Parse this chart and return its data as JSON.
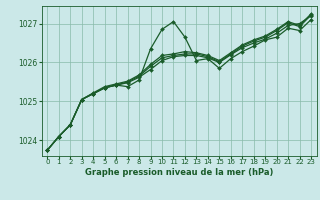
{
  "background_color": "#cbe8e8",
  "plot_bg_color": "#cbe8e8",
  "grid_color": "#88bbaa",
  "line_color": "#1a5c2a",
  "xlabel": "Graphe pression niveau de la mer (hPa)",
  "xlim": [
    -0.5,
    23.5
  ],
  "ylim": [
    1023.6,
    1027.45
  ],
  "yticks": [
    1024,
    1025,
    1026,
    1027
  ],
  "xticks": [
    0,
    1,
    2,
    3,
    4,
    5,
    6,
    7,
    8,
    9,
    10,
    11,
    12,
    13,
    14,
    15,
    16,
    17,
    18,
    19,
    20,
    21,
    22,
    23
  ],
  "series": [
    {
      "x": [
        0,
        1,
        2,
        3,
        4,
        5,
        6,
        7,
        8,
        9,
        10,
        11,
        12,
        13,
        14,
        15,
        16,
        17,
        18,
        19,
        20,
        21,
        22,
        23
      ],
      "y": [
        1023.75,
        1024.1,
        1024.4,
        1025.05,
        1025.2,
        1025.35,
        1025.42,
        1025.38,
        1025.55,
        1026.35,
        1026.85,
        1027.05,
        1026.65,
        1026.05,
        1026.1,
        1025.85,
        1026.1,
        1026.28,
        1026.42,
        1026.58,
        1026.65,
        1026.88,
        1026.82,
        1027.1
      ]
    },
    {
      "x": [
        0,
        1,
        2,
        3,
        4,
        5,
        6,
        7,
        8,
        9,
        10,
        11,
        12,
        13,
        14,
        15,
        16,
        17,
        18,
        19,
        20,
        21,
        22,
        23
      ],
      "y": [
        1023.75,
        1024.1,
        1024.4,
        1025.05,
        1025.2,
        1025.35,
        1025.42,
        1025.48,
        1025.62,
        1025.82,
        1026.05,
        1026.15,
        1026.18,
        1026.18,
        1026.12,
        1026.0,
        1026.2,
        1026.38,
        1026.5,
        1026.6,
        1026.75,
        1026.95,
        1027.0,
        1027.2
      ]
    },
    {
      "x": [
        0,
        1,
        2,
        3,
        4,
        5,
        6,
        7,
        8,
        9,
        10,
        11,
        12,
        13,
        14,
        15,
        16,
        17,
        18,
        19,
        20,
        21,
        22,
        23
      ],
      "y": [
        1023.75,
        1024.1,
        1024.4,
        1025.05,
        1025.2,
        1025.35,
        1025.42,
        1025.5,
        1025.65,
        1025.9,
        1026.12,
        1026.18,
        1026.22,
        1026.22,
        1026.15,
        1026.02,
        1026.22,
        1026.42,
        1026.55,
        1026.65,
        1026.82,
        1027.02,
        1026.92,
        1027.22
      ]
    },
    {
      "x": [
        0,
        1,
        2,
        3,
        4,
        5,
        6,
        7,
        8,
        9,
        10,
        11,
        12,
        13,
        14,
        15,
        16,
        17,
        18,
        19,
        20,
        21,
        22,
        23
      ],
      "y": [
        1023.75,
        1024.1,
        1024.4,
        1025.05,
        1025.22,
        1025.38,
        1025.45,
        1025.52,
        1025.68,
        1025.95,
        1026.18,
        1026.22,
        1026.28,
        1026.25,
        1026.18,
        1026.05,
        1026.25,
        1026.45,
        1026.58,
        1026.68,
        1026.85,
        1027.05,
        1026.95,
        1027.25
      ]
    }
  ]
}
